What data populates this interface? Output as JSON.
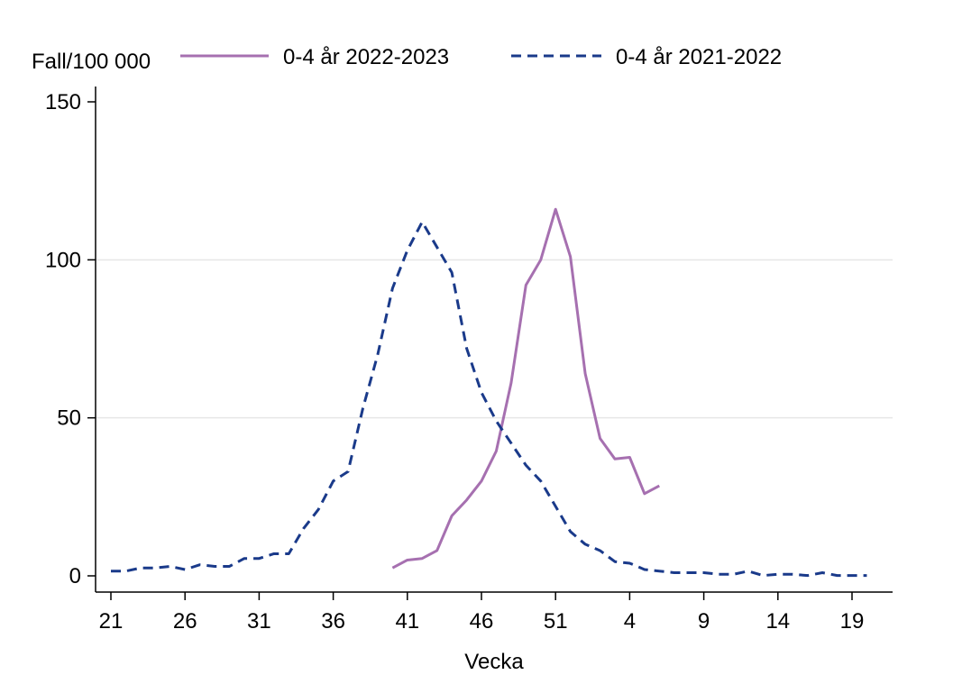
{
  "chart_data": {
    "type": "line",
    "title": "",
    "ylabel": "Fall/100 000",
    "xlabel": "Vecka",
    "ylim": [
      0,
      150
    ],
    "y_ticks": [
      0,
      50,
      100,
      150
    ],
    "grid": "horizontal",
    "legend_position": "top",
    "x_weeks": [
      "21",
      "22",
      "23",
      "24",
      "25",
      "26",
      "27",
      "28",
      "29",
      "30",
      "31",
      "32",
      "33",
      "34",
      "35",
      "36",
      "37",
      "38",
      "39",
      "40",
      "41",
      "42",
      "43",
      "44",
      "45",
      "46",
      "47",
      "48",
      "49",
      "50",
      "51",
      "52",
      "1",
      "2",
      "3",
      "4",
      "5",
      "6",
      "7",
      "8",
      "9",
      "10",
      "11",
      "12",
      "13",
      "14",
      "15",
      "16",
      "17",
      "18",
      "19",
      "20"
    ],
    "x_tick_labels": [
      "21",
      "26",
      "31",
      "36",
      "41",
      "46",
      "51",
      "4",
      "9",
      "14",
      "19"
    ],
    "series": [
      {
        "name": "0-4 år 2022-2023",
        "style": "solid",
        "color": "#a670b0",
        "values": [
          null,
          null,
          null,
          null,
          null,
          null,
          null,
          null,
          null,
          null,
          null,
          null,
          null,
          null,
          null,
          null,
          null,
          null,
          null,
          2.5,
          5,
          5.5,
          8,
          19,
          24,
          30,
          39.5,
          61,
          92,
          100,
          116,
          101,
          64,
          43.5,
          37,
          37.5,
          26,
          28.5,
          null,
          null,
          null,
          null,
          null,
          null,
          null,
          null,
          null,
          null,
          null,
          null,
          null,
          null
        ]
      },
      {
        "name": "0-4 år 2021-2022",
        "style": "dashed",
        "color": "#1a3a8a",
        "values": [
          1.5,
          1.5,
          2.5,
          2.5,
          3,
          2,
          3.5,
          3,
          3,
          5.5,
          5.5,
          7,
          7,
          15,
          21,
          30,
          33,
          53,
          70,
          91,
          103,
          112,
          104,
          96,
          72,
          58,
          49,
          42,
          35,
          30,
          22,
          14,
          10,
          8,
          4.5,
          4,
          2,
          1.5,
          1,
          1,
          1,
          0.5,
          0.5,
          1.5,
          0.1,
          0.5,
          0.5,
          0.1,
          1,
          0.1,
          0.1,
          0.1
        ]
      }
    ]
  }
}
